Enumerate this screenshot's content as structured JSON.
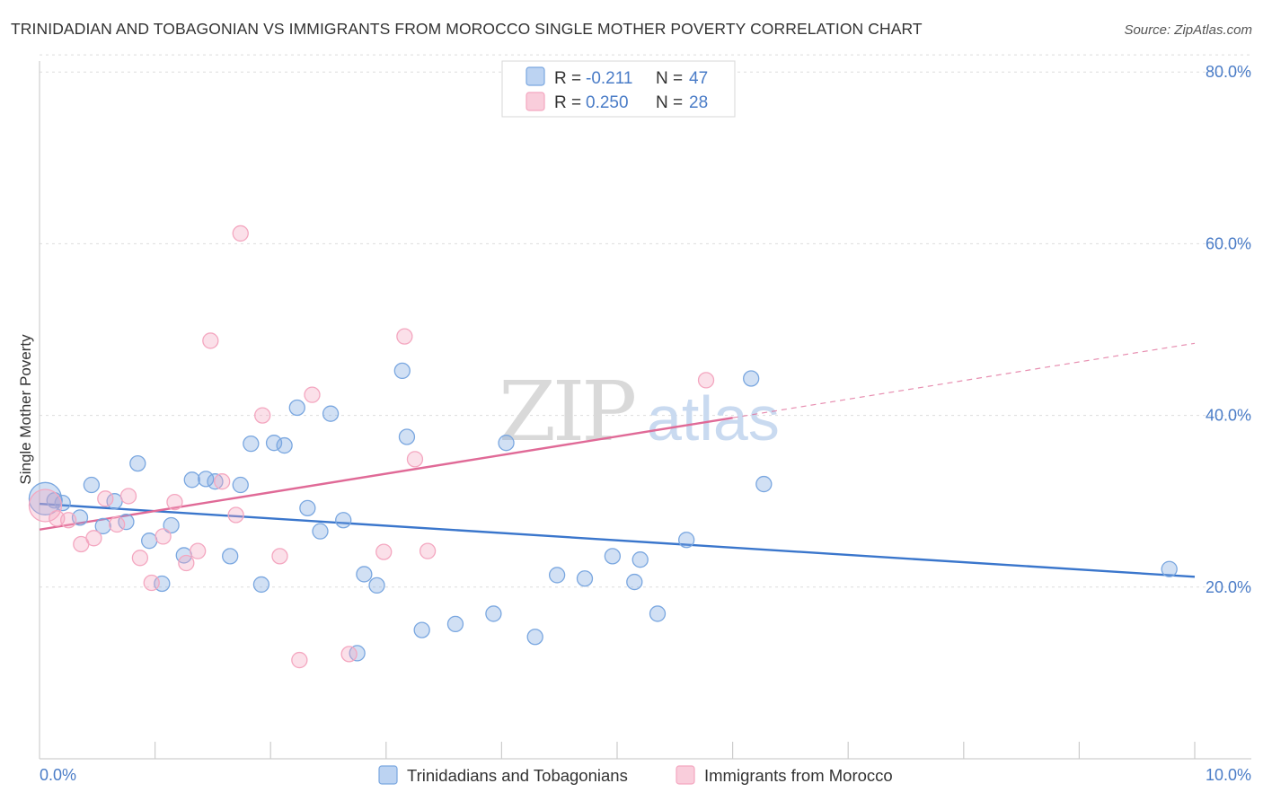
{
  "title": "TRINIDADIAN AND TOBAGONIAN VS IMMIGRANTS FROM MOROCCO SINGLE MOTHER POVERTY CORRELATION CHART",
  "source": "Source: ZipAtlas.com",
  "watermark": {
    "zip": "ZIP",
    "atlas": "atlas"
  },
  "chart_data": {
    "type": "scatter",
    "title": "TRINIDADIAN AND TOBAGONIAN VS IMMIGRANTS FROM MOROCCO SINGLE MOTHER POVERTY CORRELATION CHART",
    "xlabel": "",
    "ylabel": "Single Mother Poverty",
    "xlim": [
      0,
      10
    ],
    "ylim": [
      0,
      82
    ],
    "x_tick_labels": {
      "min": "0.0%",
      "max": "10.0%"
    },
    "y_ticks": [
      {
        "value": 20,
        "label": "20.0%"
      },
      {
        "value": 40,
        "label": "40.0%"
      },
      {
        "value": 60,
        "label": "60.0%"
      },
      {
        "value": 80,
        "label": "80.0%"
      }
    ],
    "grid": "horizontal dashed",
    "legend_position": "top-center",
    "series": [
      {
        "name": "Trinidadians and Tobagonians",
        "color": "#7aa7e0",
        "line_color": "#3a76cc",
        "R": "-0.211",
        "N": "47",
        "trend": {
          "x0": 0.0,
          "y0": 29.7,
          "x1": 10.0,
          "y1": 21.2,
          "dashed_from": null
        },
        "points": [
          {
            "x": 0.05,
            "y": 30.3,
            "big": true
          },
          {
            "x": 0.13,
            "y": 30.1
          },
          {
            "x": 0.2,
            "y": 29.8
          },
          {
            "x": 0.35,
            "y": 28.1
          },
          {
            "x": 0.45,
            "y": 31.9
          },
          {
            "x": 0.55,
            "y": 27.1
          },
          {
            "x": 0.65,
            "y": 30.0
          },
          {
            "x": 0.75,
            "y": 27.6
          },
          {
            "x": 0.85,
            "y": 34.4
          },
          {
            "x": 0.95,
            "y": 25.4
          },
          {
            "x": 1.06,
            "y": 20.4
          },
          {
            "x": 1.14,
            "y": 27.2
          },
          {
            "x": 1.25,
            "y": 23.7
          },
          {
            "x": 1.32,
            "y": 32.5
          },
          {
            "x": 1.44,
            "y": 32.6
          },
          {
            "x": 1.52,
            "y": 32.3
          },
          {
            "x": 1.65,
            "y": 23.6
          },
          {
            "x": 1.74,
            "y": 31.9
          },
          {
            "x": 1.83,
            "y": 36.7
          },
          {
            "x": 1.92,
            "y": 20.3
          },
          {
            "x": 2.03,
            "y": 36.8
          },
          {
            "x": 2.12,
            "y": 36.5
          },
          {
            "x": 2.23,
            "y": 40.9
          },
          {
            "x": 2.32,
            "y": 29.2
          },
          {
            "x": 2.43,
            "y": 26.5
          },
          {
            "x": 2.52,
            "y": 40.2
          },
          {
            "x": 2.63,
            "y": 27.8
          },
          {
            "x": 2.75,
            "y": 12.3
          },
          {
            "x": 2.81,
            "y": 21.5
          },
          {
            "x": 2.92,
            "y": 20.2
          },
          {
            "x": 3.14,
            "y": 45.2
          },
          {
            "x": 3.18,
            "y": 37.5
          },
          {
            "x": 3.31,
            "y": 15.0
          },
          {
            "x": 3.6,
            "y": 15.7
          },
          {
            "x": 3.93,
            "y": 16.9
          },
          {
            "x": 4.04,
            "y": 36.8
          },
          {
            "x": 4.29,
            "y": 14.2
          },
          {
            "x": 4.48,
            "y": 21.4
          },
          {
            "x": 4.72,
            "y": 21.0
          },
          {
            "x": 4.96,
            "y": 23.6
          },
          {
            "x": 5.15,
            "y": 20.6
          },
          {
            "x": 5.2,
            "y": 23.2
          },
          {
            "x": 5.35,
            "y": 16.9
          },
          {
            "x": 5.6,
            "y": 25.5
          },
          {
            "x": 6.16,
            "y": 44.3
          },
          {
            "x": 6.27,
            "y": 32.0
          },
          {
            "x": 9.78,
            "y": 22.1
          }
        ]
      },
      {
        "name": "Immigrants from Morocco",
        "color": "#f4a7c0",
        "line_color": "#e06a97",
        "R": "0.250",
        "N": "28",
        "trend": {
          "x0": 0.0,
          "y0": 26.7,
          "x1": 10.0,
          "y1": 48.4,
          "dashed_from": 6.0
        },
        "points": [
          {
            "x": 0.05,
            "y": 29.5,
            "big": true
          },
          {
            "x": 0.15,
            "y": 28.0
          },
          {
            "x": 0.25,
            "y": 27.8
          },
          {
            "x": 0.36,
            "y": 25.0
          },
          {
            "x": 0.47,
            "y": 25.7
          },
          {
            "x": 0.57,
            "y": 30.3
          },
          {
            "x": 0.67,
            "y": 27.3
          },
          {
            "x": 0.77,
            "y": 30.6
          },
          {
            "x": 0.87,
            "y": 23.4
          },
          {
            "x": 0.97,
            "y": 20.5
          },
          {
            "x": 1.07,
            "y": 25.9
          },
          {
            "x": 1.17,
            "y": 29.9
          },
          {
            "x": 1.27,
            "y": 22.8
          },
          {
            "x": 1.37,
            "y": 24.2
          },
          {
            "x": 1.48,
            "y": 48.7
          },
          {
            "x": 1.58,
            "y": 32.3
          },
          {
            "x": 1.7,
            "y": 28.4
          },
          {
            "x": 1.74,
            "y": 61.2
          },
          {
            "x": 1.93,
            "y": 40.0
          },
          {
            "x": 2.08,
            "y": 23.6
          },
          {
            "x": 2.25,
            "y": 11.5
          },
          {
            "x": 2.36,
            "y": 42.4
          },
          {
            "x": 2.68,
            "y": 12.2
          },
          {
            "x": 2.98,
            "y": 24.1
          },
          {
            "x": 3.16,
            "y": 49.2
          },
          {
            "x": 3.25,
            "y": 34.9
          },
          {
            "x": 3.36,
            "y": 24.2
          },
          {
            "x": 5.77,
            "y": 44.1
          }
        ]
      }
    ]
  },
  "legend": {
    "r_label": "R =",
    "n_label": "N ="
  }
}
